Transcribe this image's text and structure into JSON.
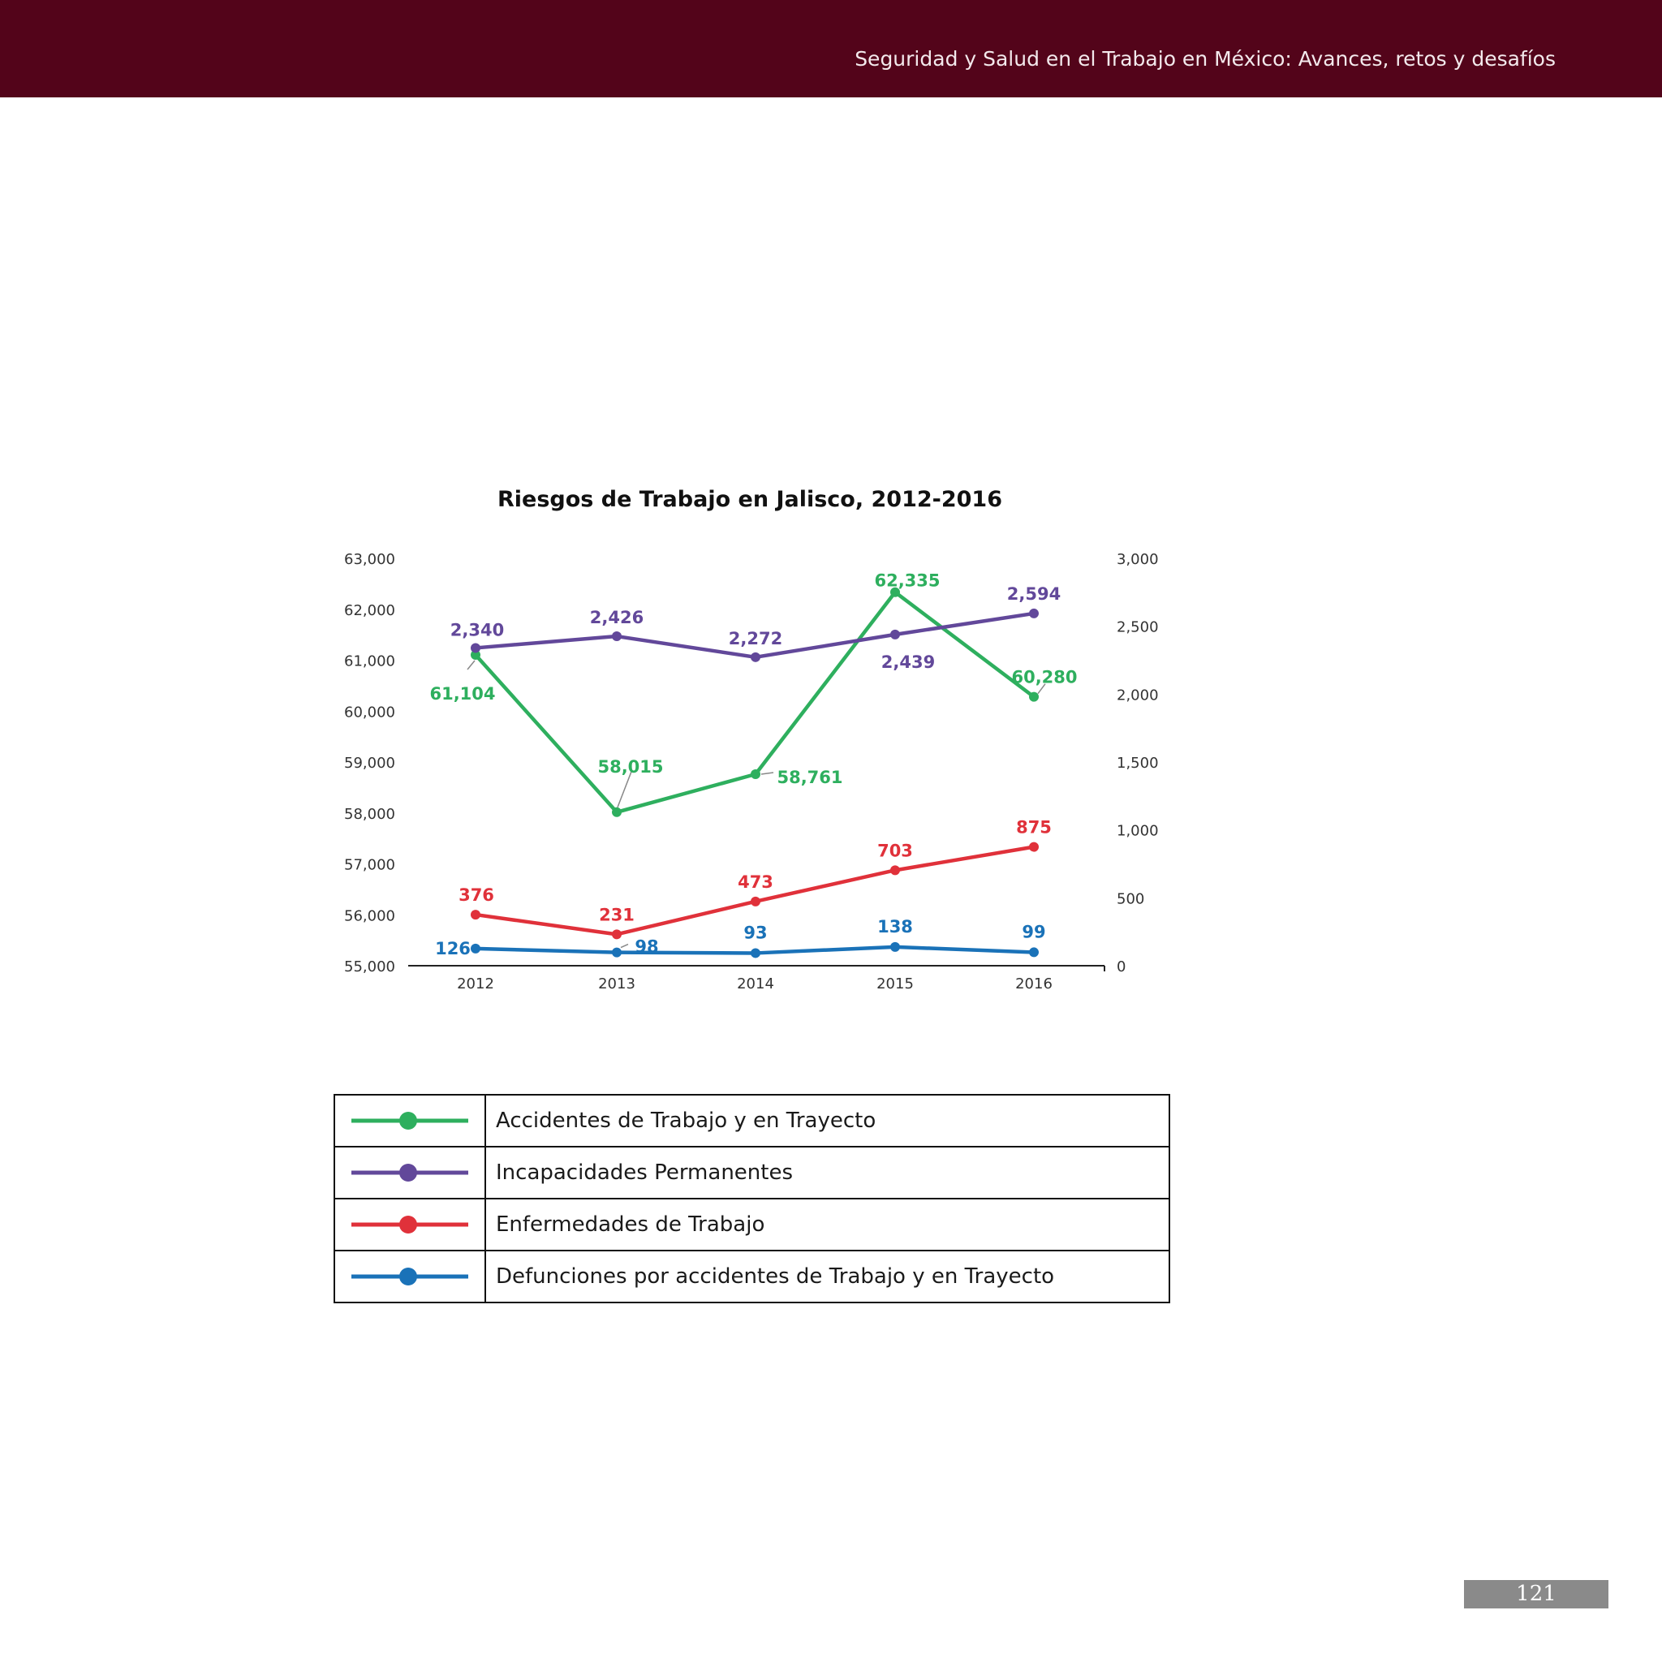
{
  "header": {
    "title": "Seguridad y Salud en el Trabajo en México: Avances, retos y desafíos"
  },
  "page_number": "121",
  "colors": {
    "header_bg": "#53041a",
    "green": "#2eaf5e",
    "purple": "#62489a",
    "red": "#e0313a",
    "blue": "#1a72b8"
  },
  "chart_data": {
    "type": "line",
    "title": "Riesgos de Trabajo en Jalisco, 2012-2016",
    "categories": [
      "2012",
      "2013",
      "2014",
      "2015",
      "2016"
    ],
    "y_left": {
      "min": 55000,
      "max": 63000,
      "ticks": [
        "55,000",
        "56,000",
        "57,000",
        "58,000",
        "59,000",
        "60,000",
        "61,000",
        "62,000",
        "63,000"
      ]
    },
    "y_right": {
      "min": 0,
      "max": 3000,
      "ticks": [
        "0",
        "500",
        "1,000",
        "1,500",
        "2,000",
        "2,500",
        "3,000"
      ]
    },
    "grid": false,
    "legend_placement": "below",
    "series": [
      {
        "name": "Accidentes de Trabajo y en Trayecto",
        "axis": "left",
        "color": "#2eaf5e",
        "values": [
          61104,
          58015,
          58761,
          62335,
          60280
        ],
        "labels": [
          "61,104",
          "58,015",
          "58,761",
          "62,335",
          "60,280"
        ]
      },
      {
        "name": "Incapacidades Permanentes",
        "axis": "right",
        "color": "#62489a",
        "values": [
          2340,
          2426,
          2272,
          2439,
          2594
        ],
        "labels": [
          "2,340",
          "2,426",
          "2,272",
          "2,439",
          "2,594"
        ]
      },
      {
        "name": "Enfermedades de Trabajo",
        "axis": "right",
        "color": "#e0313a",
        "values": [
          376,
          231,
          473,
          703,
          875
        ],
        "labels": [
          "376",
          "231",
          "473",
          "703",
          "875"
        ]
      },
      {
        "name": "Defunciones por accidentes de Trabajo y en Trayecto",
        "axis": "right",
        "color": "#1a72b8",
        "values": [
          126,
          98,
          93,
          138,
          99
        ],
        "labels": [
          "126",
          "98",
          "93",
          "138",
          "99"
        ]
      }
    ]
  }
}
